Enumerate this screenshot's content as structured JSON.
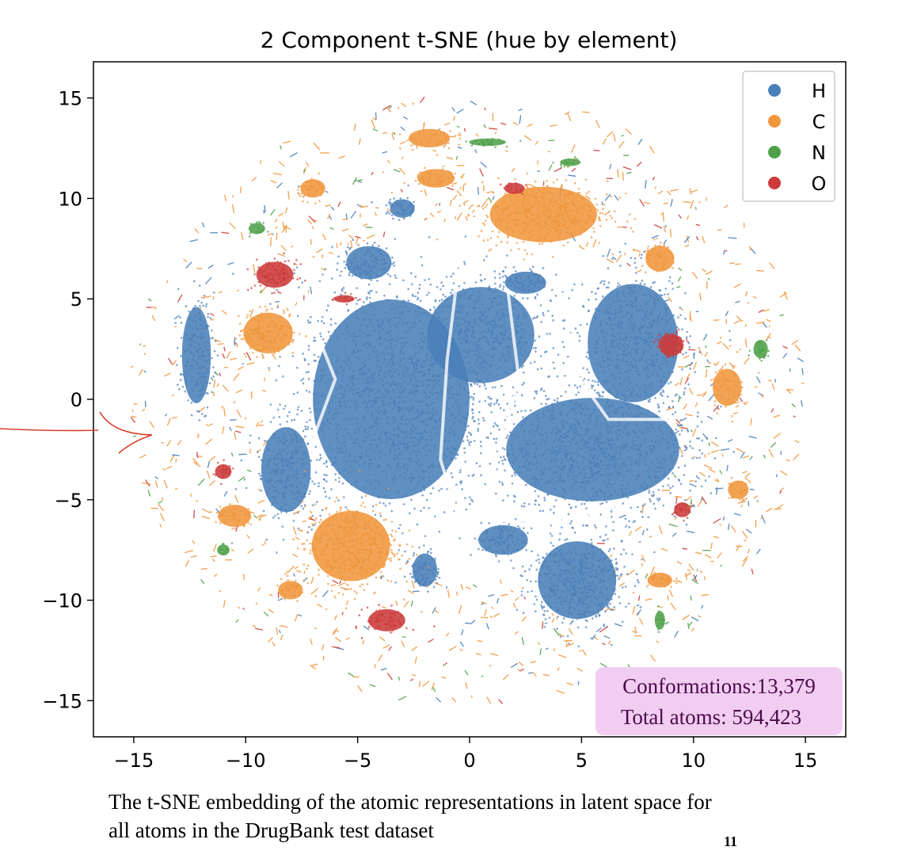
{
  "chart_data": {
    "type": "scatter",
    "title": "2 Component t-SNE (hue by element)",
    "xlabel": "",
    "ylabel": "",
    "xlim": [
      -16.8,
      16.8
    ],
    "ylim": [
      -16.8,
      16.8
    ],
    "xticks": [
      -15,
      -10,
      -5,
      0,
      5,
      10,
      15
    ],
    "yticks": [
      -15,
      -10,
      -5,
      0,
      5,
      10,
      15
    ],
    "xtick_labels": [
      "−15",
      "−10",
      "−5",
      "0",
      "5",
      "10",
      "15"
    ],
    "ytick_labels": [
      "−15",
      "−10",
      "−5",
      "0",
      "5",
      "10",
      "15"
    ],
    "grid": false,
    "legend_position": "top-right",
    "series": [
      {
        "name": "H",
        "color": "#4a7fb8",
        "clusters": [
          {
            "x": -3.5,
            "y": 0.0,
            "rx": 3.8,
            "ry": 5.4,
            "n": 1500
          },
          {
            "x": 0.5,
            "y": 3.2,
            "rx": 2.6,
            "ry": 2.6,
            "n": 600
          },
          {
            "x": 5.5,
            "y": -2.5,
            "rx": 4.2,
            "ry": 2.8,
            "n": 1100
          },
          {
            "x": 7.3,
            "y": 2.8,
            "rx": 2.2,
            "ry": 3.2,
            "n": 600
          },
          {
            "x": 4.8,
            "y": -9.0,
            "rx": 1.9,
            "ry": 2.1,
            "n": 500
          },
          {
            "x": -8.2,
            "y": -3.5,
            "rx": 1.2,
            "ry": 2.3,
            "n": 250
          },
          {
            "x": -12.2,
            "y": 2.2,
            "rx": 0.7,
            "ry": 2.6,
            "n": 180
          },
          {
            "x": -4.5,
            "y": 6.8,
            "rx": 1.1,
            "ry": 0.9,
            "n": 120
          },
          {
            "x": -2.0,
            "y": -8.5,
            "rx": 0.6,
            "ry": 0.9,
            "n": 90
          },
          {
            "x": 1.5,
            "y": -7.0,
            "rx": 1.2,
            "ry": 0.8,
            "n": 110
          },
          {
            "x": -3.0,
            "y": 9.5,
            "rx": 0.6,
            "ry": 0.5,
            "n": 50
          },
          {
            "x": 2.5,
            "y": 5.8,
            "rx": 1.0,
            "ry": 0.6,
            "n": 90
          }
        ]
      },
      {
        "name": "C",
        "color": "#f0963c",
        "clusters": [
          {
            "x": 3.3,
            "y": 9.2,
            "rx": 2.6,
            "ry": 1.5,
            "n": 450
          },
          {
            "x": -5.3,
            "y": -7.3,
            "rx": 1.9,
            "ry": 1.9,
            "n": 450
          },
          {
            "x": -9.0,
            "y": 3.3,
            "rx": 1.2,
            "ry": 1.1,
            "n": 160
          },
          {
            "x": -1.8,
            "y": 13.0,
            "rx": 1.0,
            "ry": 0.5,
            "n": 50
          },
          {
            "x": -10.5,
            "y": -5.8,
            "rx": 0.8,
            "ry": 0.6,
            "n": 60
          },
          {
            "x": 11.5,
            "y": 0.6,
            "rx": 0.7,
            "ry": 1.0,
            "n": 70
          },
          {
            "x": -1.5,
            "y": 11.0,
            "rx": 0.9,
            "ry": 0.5,
            "n": 50
          },
          {
            "x": -7.0,
            "y": 10.5,
            "rx": 0.6,
            "ry": 0.5,
            "n": 40
          },
          {
            "x": 8.5,
            "y": 7.0,
            "rx": 0.7,
            "ry": 0.7,
            "n": 50
          },
          {
            "x": -8.0,
            "y": -9.5,
            "rx": 0.6,
            "ry": 0.5,
            "n": 40
          },
          {
            "x": 8.5,
            "y": -9.0,
            "rx": 0.6,
            "ry": 0.4,
            "n": 40
          },
          {
            "x": 12.0,
            "y": -4.5,
            "rx": 0.5,
            "ry": 0.5,
            "n": 30
          }
        ]
      },
      {
        "name": "N",
        "color": "#4ea14a",
        "clusters": [
          {
            "x": 13.0,
            "y": 2.5,
            "rx": 0.35,
            "ry": 0.5,
            "n": 30
          },
          {
            "x": 0.8,
            "y": 12.8,
            "rx": 0.9,
            "ry": 0.2,
            "n": 25
          },
          {
            "x": 8.5,
            "y": -11.0,
            "rx": 0.25,
            "ry": 0.5,
            "n": 15
          },
          {
            "x": -9.5,
            "y": 8.5,
            "rx": 0.4,
            "ry": 0.3,
            "n": 15
          },
          {
            "x": -11.0,
            "y": -7.5,
            "rx": 0.3,
            "ry": 0.3,
            "n": 10
          },
          {
            "x": 4.5,
            "y": 11.8,
            "rx": 0.5,
            "ry": 0.2,
            "n": 12
          }
        ]
      },
      {
        "name": "O",
        "color": "#cc3b3b",
        "clusters": [
          {
            "x": -8.7,
            "y": 6.2,
            "rx": 0.9,
            "ry": 0.7,
            "n": 120
          },
          {
            "x": 9.0,
            "y": 2.7,
            "rx": 0.6,
            "ry": 0.6,
            "n": 90
          },
          {
            "x": -3.7,
            "y": -11.0,
            "rx": 0.9,
            "ry": 0.6,
            "n": 70
          },
          {
            "x": -11.0,
            "y": -3.6,
            "rx": 0.4,
            "ry": 0.4,
            "n": 30
          },
          {
            "x": 9.5,
            "y": -5.5,
            "rx": 0.4,
            "ry": 0.4,
            "n": 25
          },
          {
            "x": -5.6,
            "y": 5.0,
            "rx": 0.5,
            "ry": 0.2,
            "n": 20
          },
          {
            "x": 2.0,
            "y": 10.5,
            "rx": 0.5,
            "ry": 0.3,
            "n": 20
          }
        ]
      }
    ],
    "scatter_noise": {
      "n": 1100,
      "r_min": 9.0,
      "r_max": 15.2
    }
  },
  "info_box": {
    "line1": "Conformations:13,379",
    "line2": "Total atoms: 594,423",
    "background": "#f2cdf2",
    "text_color": "#4a0a4a"
  },
  "caption": {
    "line1": "The t-SNE embedding of the atomic representations in latent space for",
    "line2": "all atoms in the DrugBank test dataset"
  },
  "page_number": "11",
  "annotation_color": "#d6402b"
}
